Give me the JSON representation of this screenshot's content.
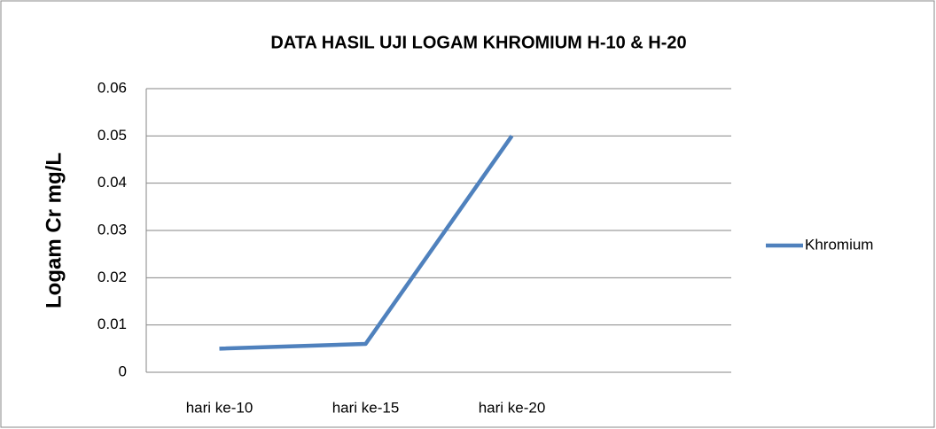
{
  "chart_data": {
    "type": "line",
    "title": "DATA HASIL UJI LOGAM KHROMIUM  H-10 & H-20",
    "y_label": "Logam Cr mg/L",
    "categories": [
      "hari ke-10",
      "hari ke-15",
      "hari ke-20",
      null
    ],
    "series": [
      {
        "name": "Khromium",
        "color": "#4f81bd",
        "values": [
          0.005,
          0.006,
          0.05,
          null
        ]
      }
    ],
    "ylim": [
      0,
      0.06
    ],
    "yticks": [
      0,
      0.01,
      0.02,
      0.03,
      0.04,
      0.05,
      0.06
    ],
    "grid": true,
    "legend": "right"
  }
}
